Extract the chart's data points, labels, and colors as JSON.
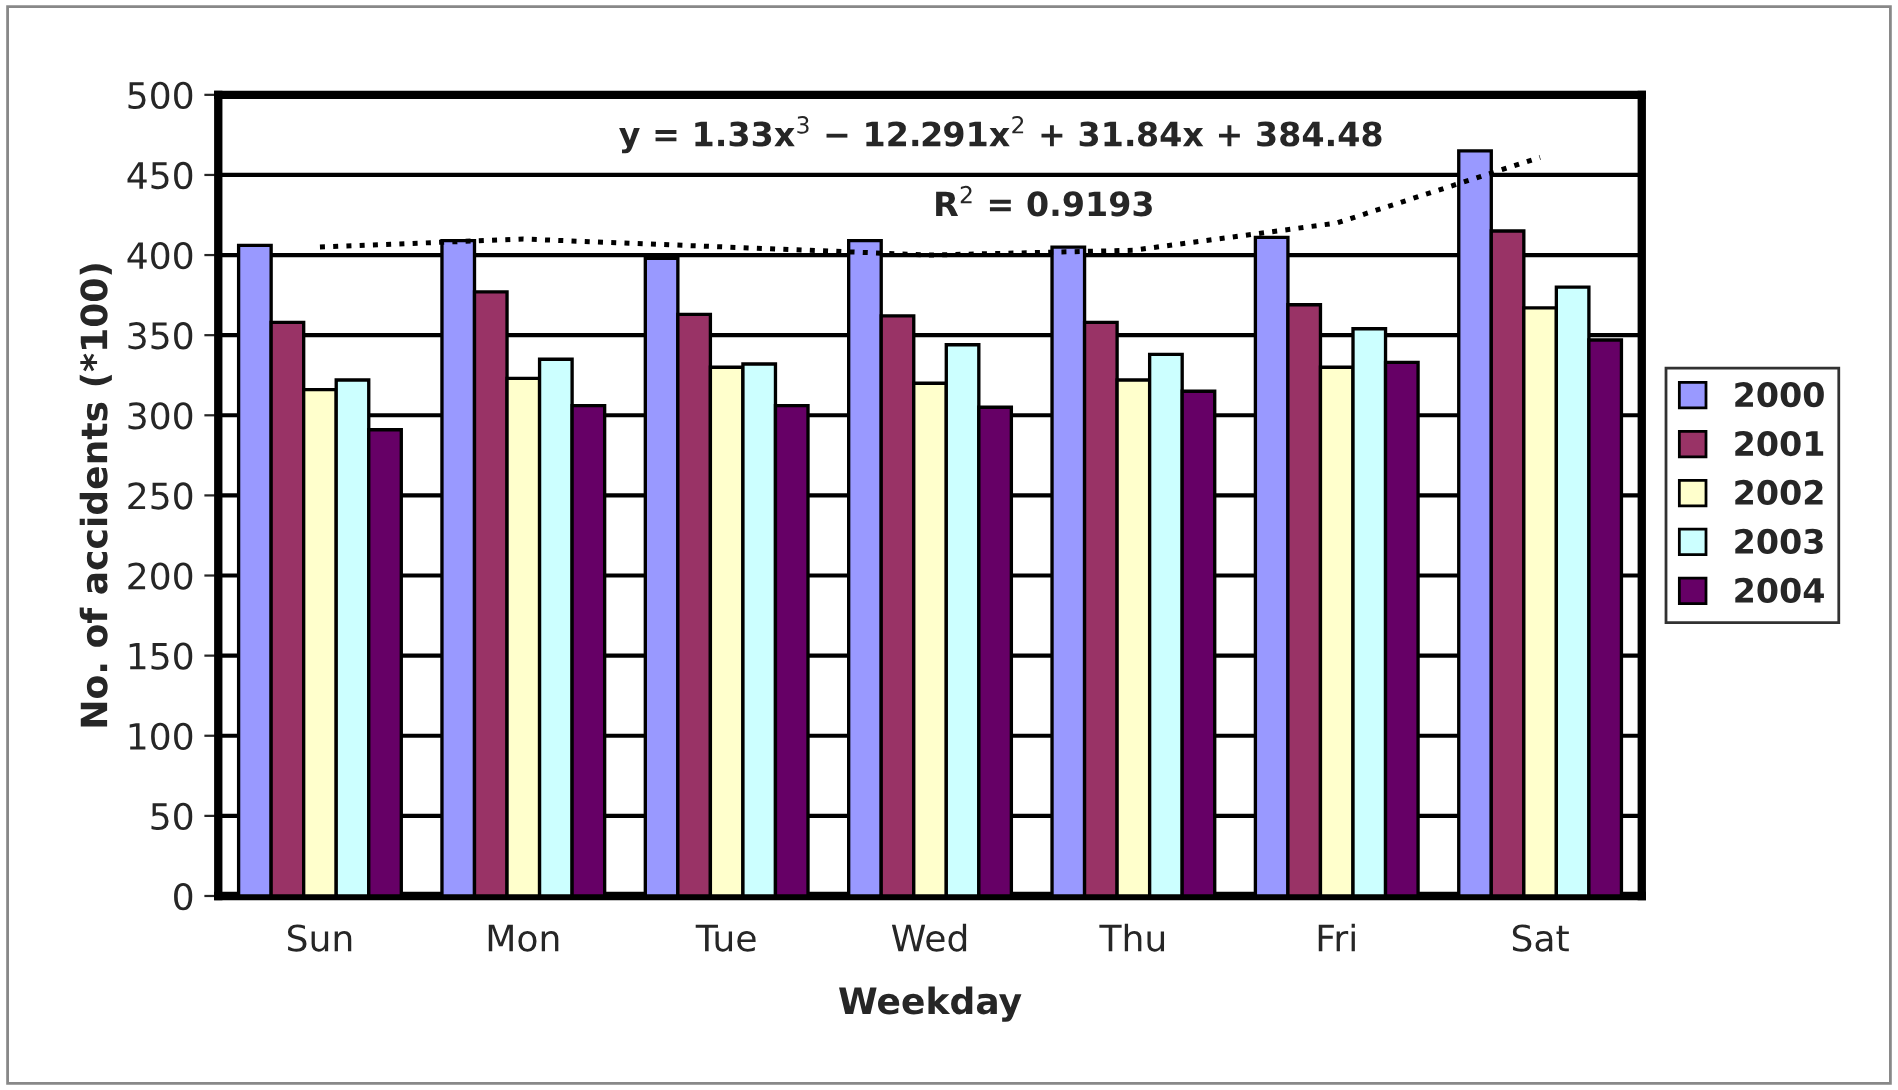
{
  "chart_data": {
    "type": "bar",
    "xlabel": "Weekday",
    "ylabel": "No. of accidents (*100)",
    "categories": [
      "Sun",
      "Mon",
      "Tue",
      "Wed",
      "Thu",
      "Fri",
      "Sat"
    ],
    "series": [
      {
        "name": "2000",
        "color": "#9999ff",
        "values": [
          406,
          409,
          398,
          409,
          405,
          411,
          465
        ]
      },
      {
        "name": "2001",
        "color": "#993366",
        "values": [
          358,
          377,
          363,
          362,
          358,
          369,
          415
        ]
      },
      {
        "name": "2002",
        "color": "#ffffcc",
        "values": [
          316,
          323,
          330,
          320,
          322,
          330,
          367
        ]
      },
      {
        "name": "2003",
        "color": "#ccffff",
        "values": [
          322,
          335,
          332,
          344,
          338,
          354,
          380
        ]
      },
      {
        "name": "2004",
        "color": "#660066",
        "values": [
          291,
          306,
          306,
          305,
          315,
          333,
          347
        ]
      },
      {
        "type": "line",
        "color": "#000000",
        "line_style": "dotted",
        "values": [
          405,
          410,
          405,
          400,
          403,
          420,
          461
        ]
      }
    ],
    "ylim": [
      0,
      500
    ],
    "yticks": [
      0,
      50,
      100,
      150,
      200,
      250,
      300,
      350,
      400,
      450,
      500
    ],
    "grid": "y",
    "legend": "right",
    "annotations": [
      "y = 1.33x$^{3}$ − 12.291x$^{2}$ + 31.84x + 384.48",
      "R$^{2}$ = 0.9193"
    ]
  }
}
